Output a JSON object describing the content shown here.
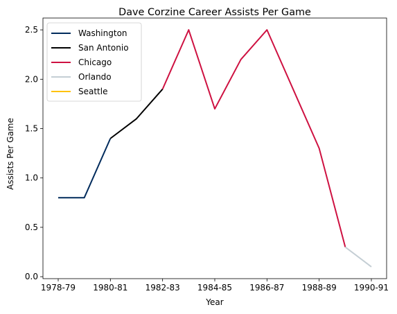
{
  "chart_data": {
    "type": "line",
    "title": "Dave Corzine Career Assists Per Game",
    "xlabel": "Year",
    "ylabel": "Assists Per Game",
    "x": [
      "1978-79",
      "1979-80",
      "1980-81",
      "1981-82",
      "1982-83",
      "1983-84",
      "1984-85",
      "1985-86",
      "1986-87",
      "1987-88",
      "1988-89",
      "1989-90",
      "1990-91"
    ],
    "x_tick_labels": [
      "1978-79",
      "1980-81",
      "1982-83",
      "1984-85",
      "1986-87",
      "1988-89",
      "1990-91"
    ],
    "ylim": [
      -0.02,
      2.62
    ],
    "y_ticks": [
      0.0,
      0.5,
      1.0,
      1.5,
      2.0,
      2.5
    ],
    "y_tick_labels": [
      "0.0",
      "0.5",
      "1.0",
      "1.5",
      "2.0",
      "2.5"
    ],
    "grid": false,
    "legend_position": "top-left",
    "series": [
      {
        "name": "Washington",
        "color": "#002B5C",
        "x": [
          "1978-79",
          "1979-80",
          "1980-81"
        ],
        "values": [
          0.8,
          0.8,
          1.4
        ]
      },
      {
        "name": "San Antonio",
        "color": "#000000",
        "x": [
          "1980-81",
          "1981-82",
          "1982-83"
        ],
        "values": [
          1.4,
          1.6,
          1.9
        ]
      },
      {
        "name": "Chicago",
        "color": "#CE1141",
        "x": [
          "1982-83",
          "1983-84",
          "1984-85",
          "1985-86",
          "1986-87",
          "1987-88",
          "1988-89",
          "1989-90"
        ],
        "values": [
          1.9,
          2.5,
          1.7,
          2.2,
          2.5,
          1.9,
          1.3,
          0.3
        ]
      },
      {
        "name": "Orlando",
        "color": "#C4CED4",
        "x": [
          "1989-90",
          "1990-91"
        ],
        "values": [
          0.3,
          0.1
        ]
      },
      {
        "name": "Seattle",
        "color": "#FFC200",
        "x": [],
        "values": []
      }
    ]
  }
}
